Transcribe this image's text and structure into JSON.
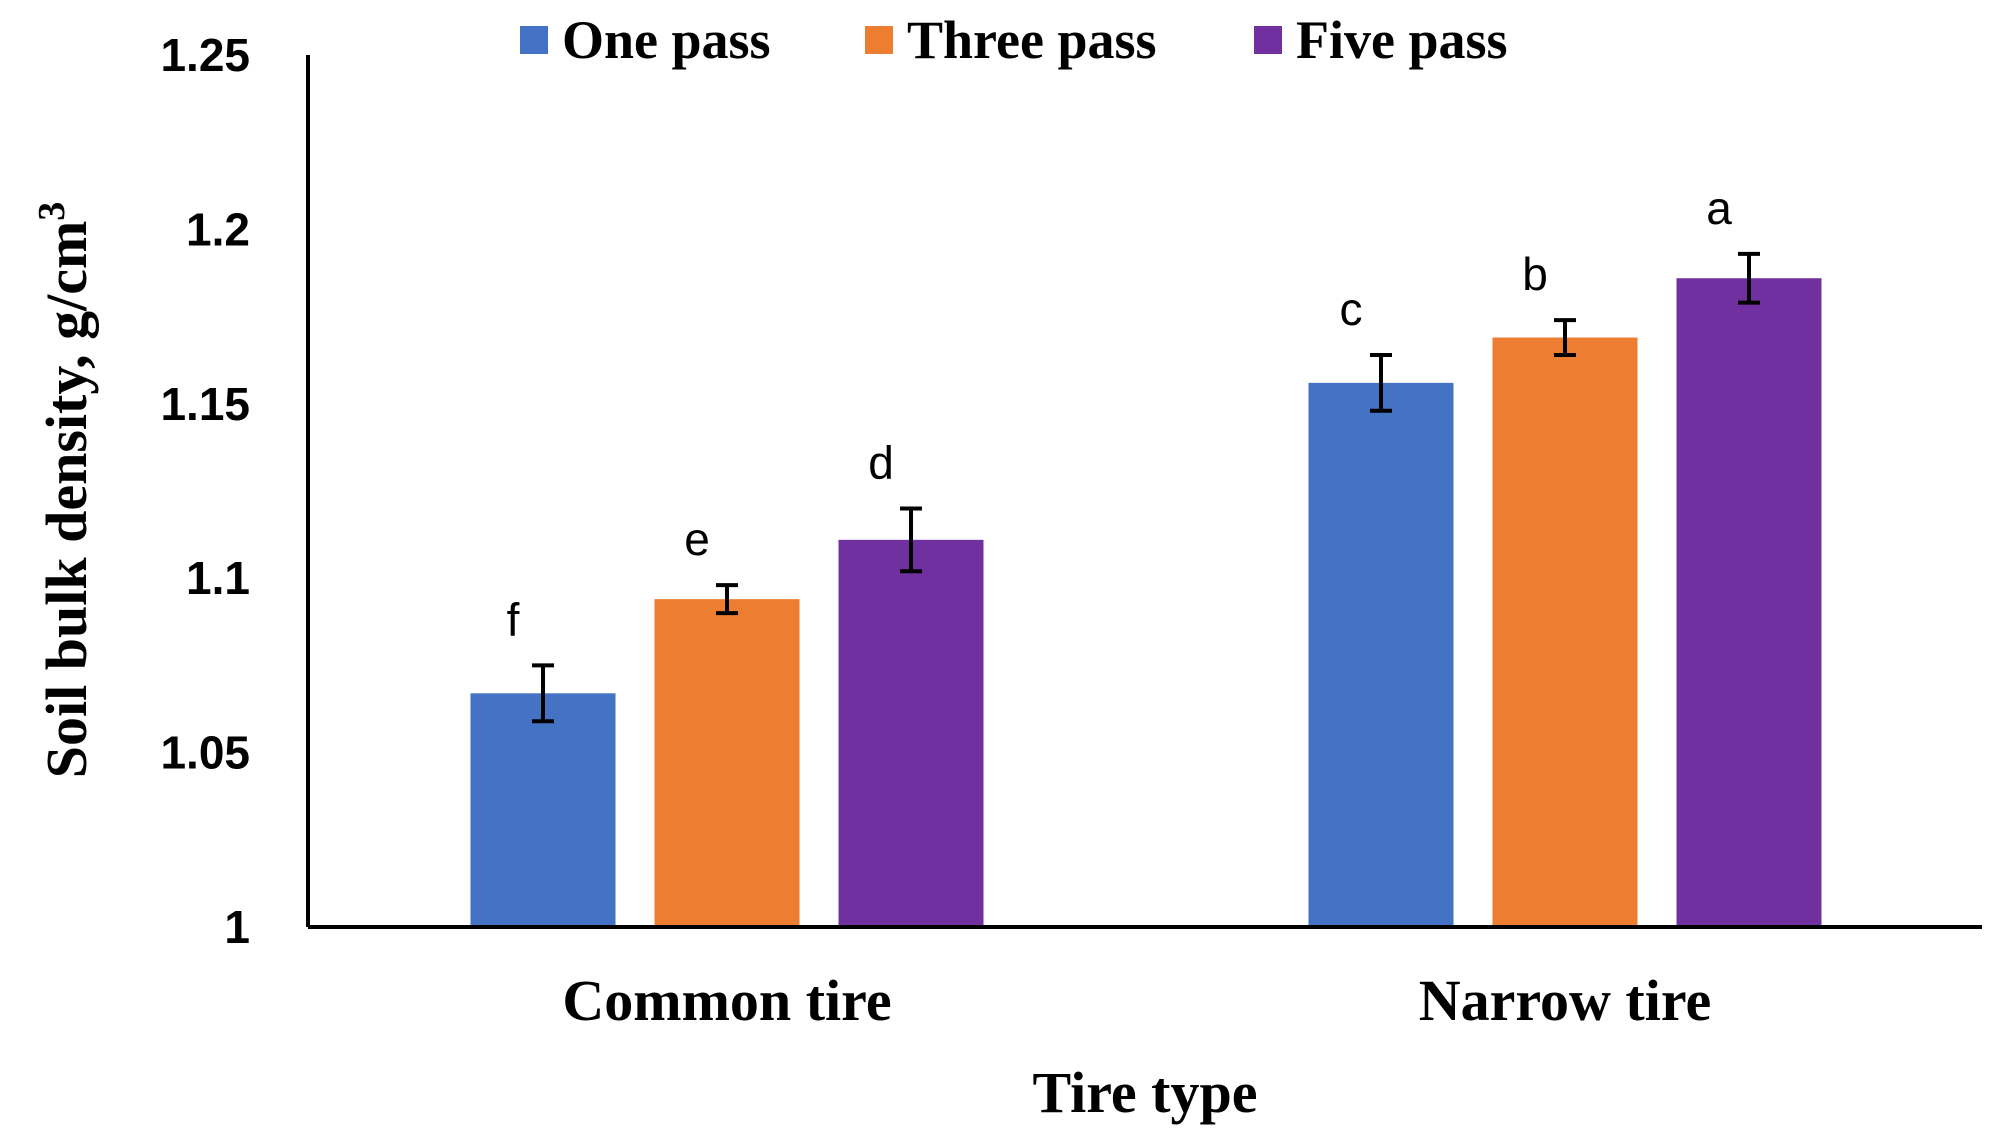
{
  "chart_data": {
    "type": "bar",
    "title": "",
    "xlabel": "Tire type",
    "ylabel_main": "Soil bulk density, g/cm",
    "ylabel_sup": "3",
    "ylim": [
      1,
      1.25
    ],
    "yticks": [
      "1",
      "1.05",
      "1.1",
      "1.15",
      "1.2",
      "1.25"
    ],
    "categories": [
      "Common tire",
      "Narrow tire"
    ],
    "legend_position": "top",
    "series": [
      {
        "name": "One pass",
        "color": "#4472C4",
        "values": [
          1.067,
          1.156
        ],
        "errors": [
          0.008,
          0.008
        ],
        "letters": [
          "f",
          "c"
        ]
      },
      {
        "name": "Three pass",
        "color": "#ED7D31",
        "values": [
          1.094,
          1.169
        ],
        "errors": [
          0.004,
          0.005
        ],
        "letters": [
          "e",
          "b"
        ]
      },
      {
        "name": "Five pass",
        "color": "#7030A0",
        "values": [
          1.111,
          1.186
        ],
        "errors": [
          0.009,
          0.007
        ],
        "letters": [
          "d",
          "a"
        ]
      }
    ]
  }
}
